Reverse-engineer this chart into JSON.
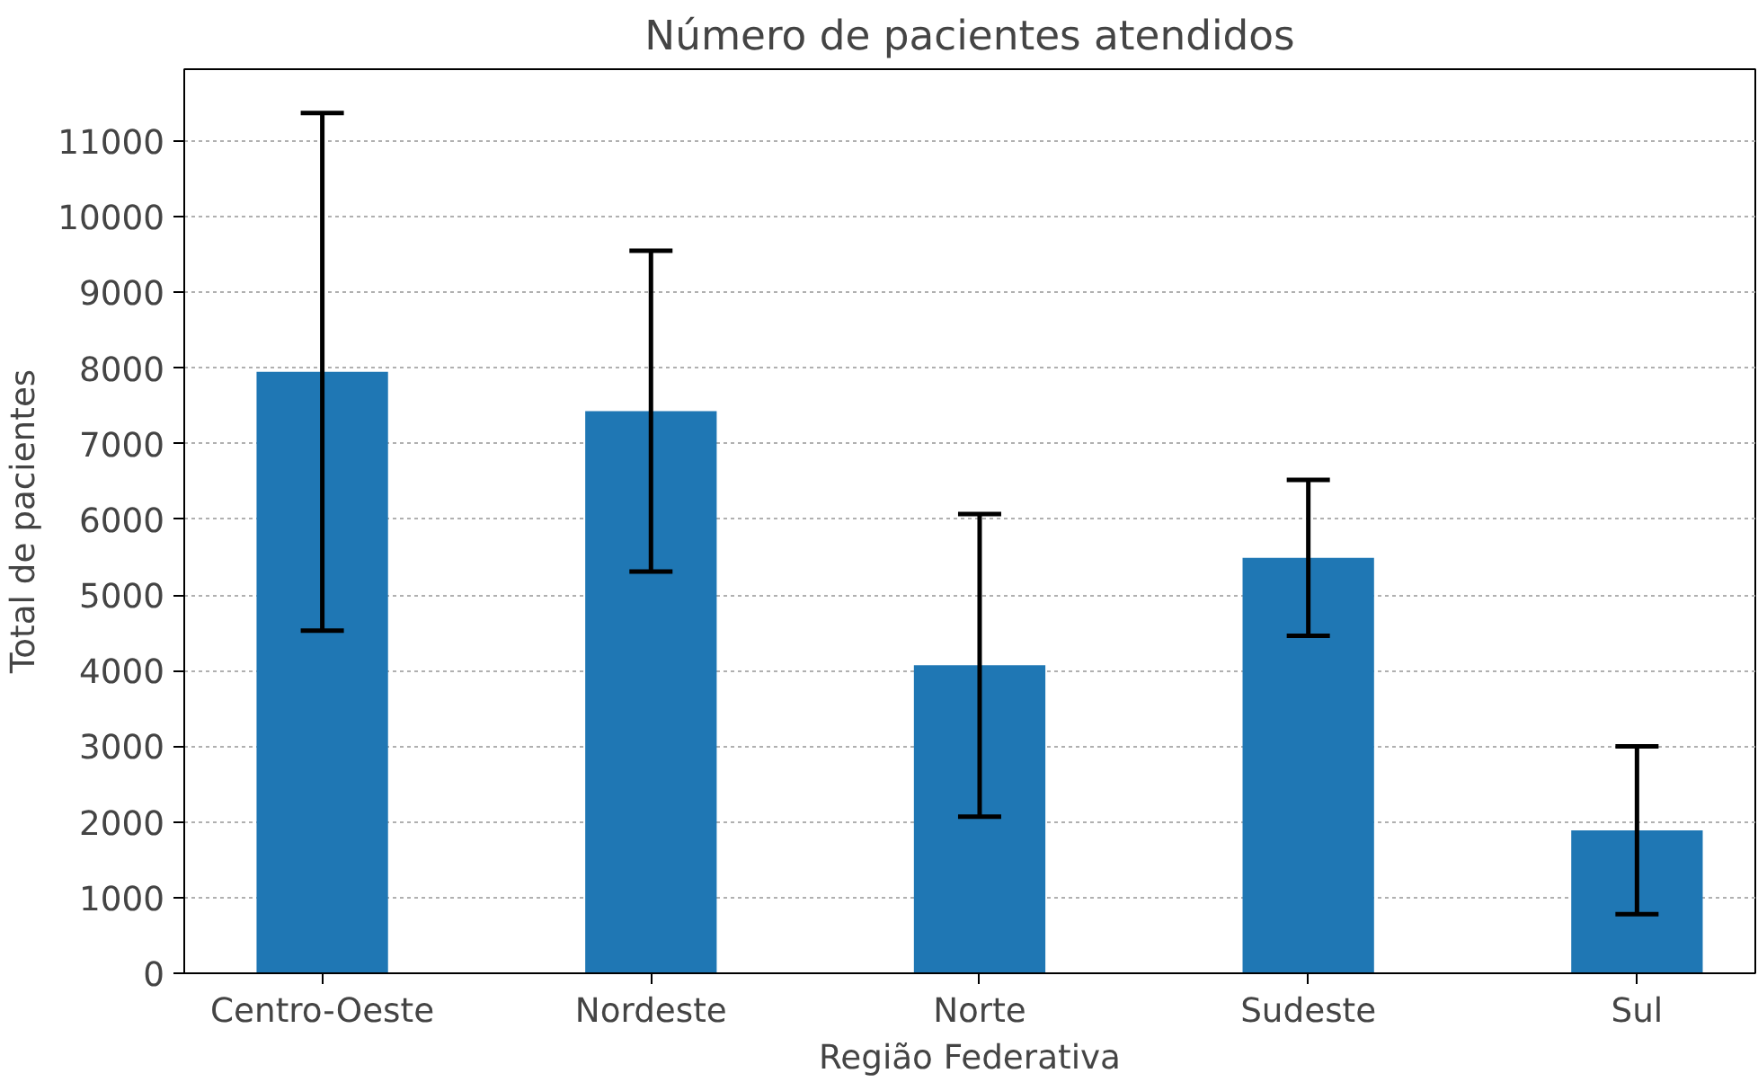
{
  "chart_data": {
    "type": "bar",
    "title": "Número de pacientes atendidos",
    "xlabel": "Região Federativa",
    "ylabel": "Total de pacientes",
    "categories": [
      "Centro-Oeste",
      "Nordeste",
      "Norte",
      "Sudeste",
      "Sul"
    ],
    "values": [
      7950,
      7430,
      4070,
      5490,
      1890
    ],
    "errors": [
      3420,
      2120,
      2000,
      1030,
      1110
    ],
    "color": "#1f77b4",
    "ylim": [
      0,
      11950
    ],
    "yticks": [
      0,
      1000,
      2000,
      3000,
      4000,
      5000,
      6000,
      7000,
      8000,
      9000,
      10000,
      11000
    ],
    "grid": "y"
  }
}
